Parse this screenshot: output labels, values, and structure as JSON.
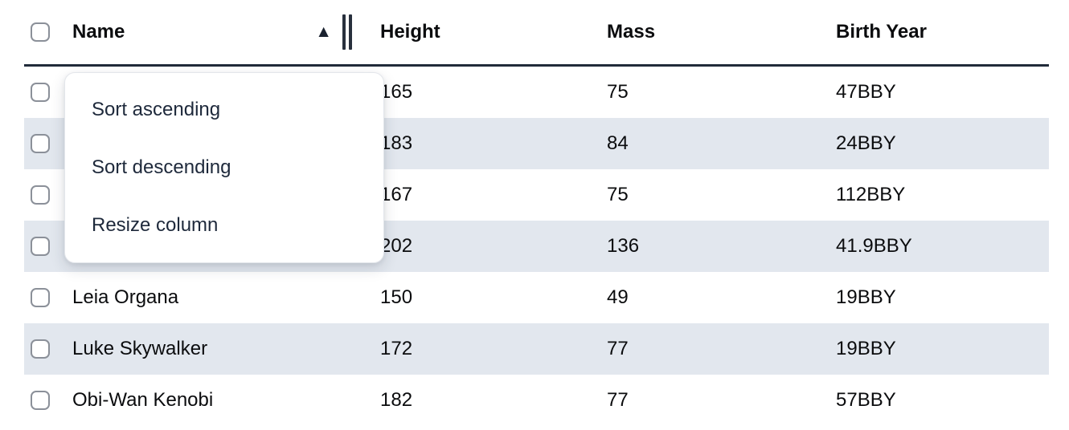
{
  "icons": {
    "sort_ascending": "▲"
  },
  "table": {
    "columns": [
      {
        "label": "Name",
        "sorted": "ascending"
      },
      {
        "label": "Height"
      },
      {
        "label": "Mass"
      },
      {
        "label": "Birth Year"
      }
    ],
    "rows": [
      {
        "name": "",
        "height": "165",
        "mass": "75",
        "birth_year": "47BBY"
      },
      {
        "name": "",
        "height": "183",
        "mass": "84",
        "birth_year": "24BBY"
      },
      {
        "name": "",
        "height": "167",
        "mass": "75",
        "birth_year": "112BBY"
      },
      {
        "name": "",
        "height": "202",
        "mass": "136",
        "birth_year": "41.9BBY"
      },
      {
        "name": "Leia Organa",
        "height": "150",
        "mass": "49",
        "birth_year": "19BBY"
      },
      {
        "name": "Luke Skywalker",
        "height": "172",
        "mass": "77",
        "birth_year": "19BBY"
      },
      {
        "name": "Obi-Wan Kenobi",
        "height": "182",
        "mass": "77",
        "birth_year": "57BBY"
      }
    ]
  },
  "menu": {
    "items": [
      {
        "label": "Sort ascending"
      },
      {
        "label": "Sort descending"
      },
      {
        "label": "Resize column"
      }
    ]
  }
}
